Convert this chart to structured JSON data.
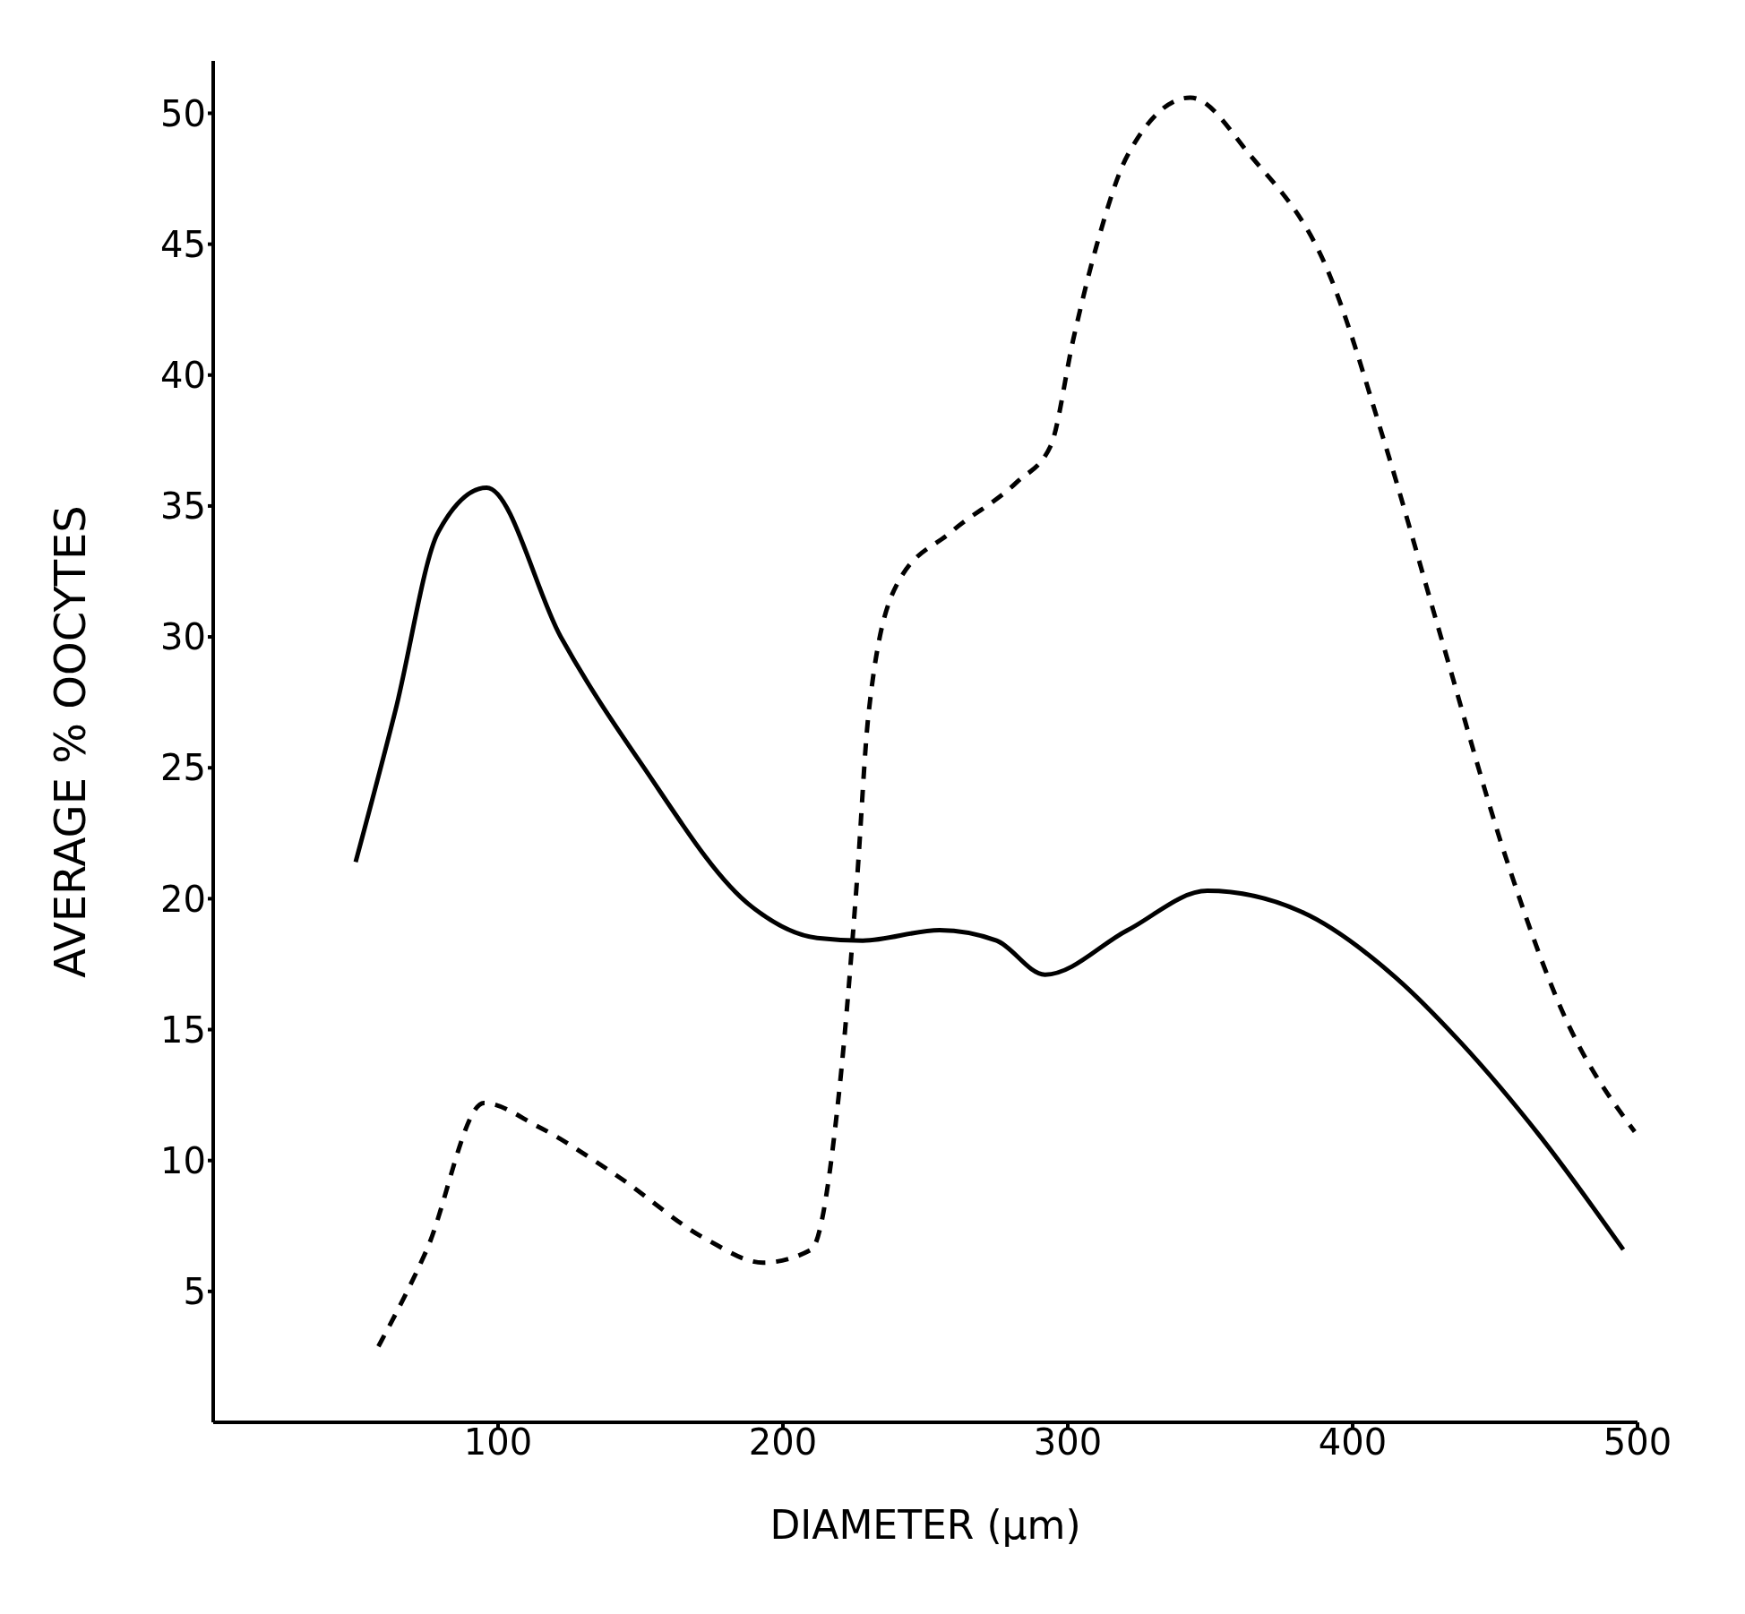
{
  "chart_data": {
    "type": "line",
    "xlabel": "DIAMETER (μm)",
    "ylabel": "AVERAGE % OOCYTES",
    "xlim": [
      0,
      500
    ],
    "xticks": [
      100,
      200,
      300,
      400,
      500
    ],
    "ylim": [
      0,
      52
    ],
    "yticks": [
      5,
      10,
      15,
      20,
      25,
      30,
      35,
      40,
      45,
      50
    ],
    "grid": false,
    "legend": false,
    "marker": "none",
    "series": [
      {
        "color": "#000000",
        "line_style": "solid",
        "x": [
          50,
          64,
          79,
          96,
          122,
          150,
          189,
          212,
          228,
          255,
          275,
          292,
          321,
          349,
          382,
          415,
          438,
          466,
          495
        ],
        "values": [
          21.4,
          27.2,
          34,
          35.7,
          30,
          25.2,
          19.7,
          18.5,
          18.4,
          18.8,
          18.4,
          17.1,
          18.8,
          20.3,
          19.5,
          17,
          14.5,
          10.9,
          6.6
        ]
      },
      {
        "color": "#000000",
        "line_style": "dashed",
        "x": [
          58,
          75,
          95,
          114,
          142,
          173,
          193,
          210,
          220,
          226,
          230,
          240,
          259,
          282,
          294,
          302,
          310,
          321,
          343,
          364,
          392,
          411,
          431,
          454,
          474,
          499
        ],
        "values": [
          2.9,
          6.6,
          12.2,
          11.3,
          9.4,
          7,
          6.1,
          6.6,
          12.9,
          20.7,
          27,
          32,
          34,
          35.9,
          37.3,
          41.4,
          44.9,
          48.4,
          50.6,
          48.4,
          43.8,
          37.5,
          30,
          21.5,
          15.6,
          11.1
        ]
      }
    ]
  }
}
